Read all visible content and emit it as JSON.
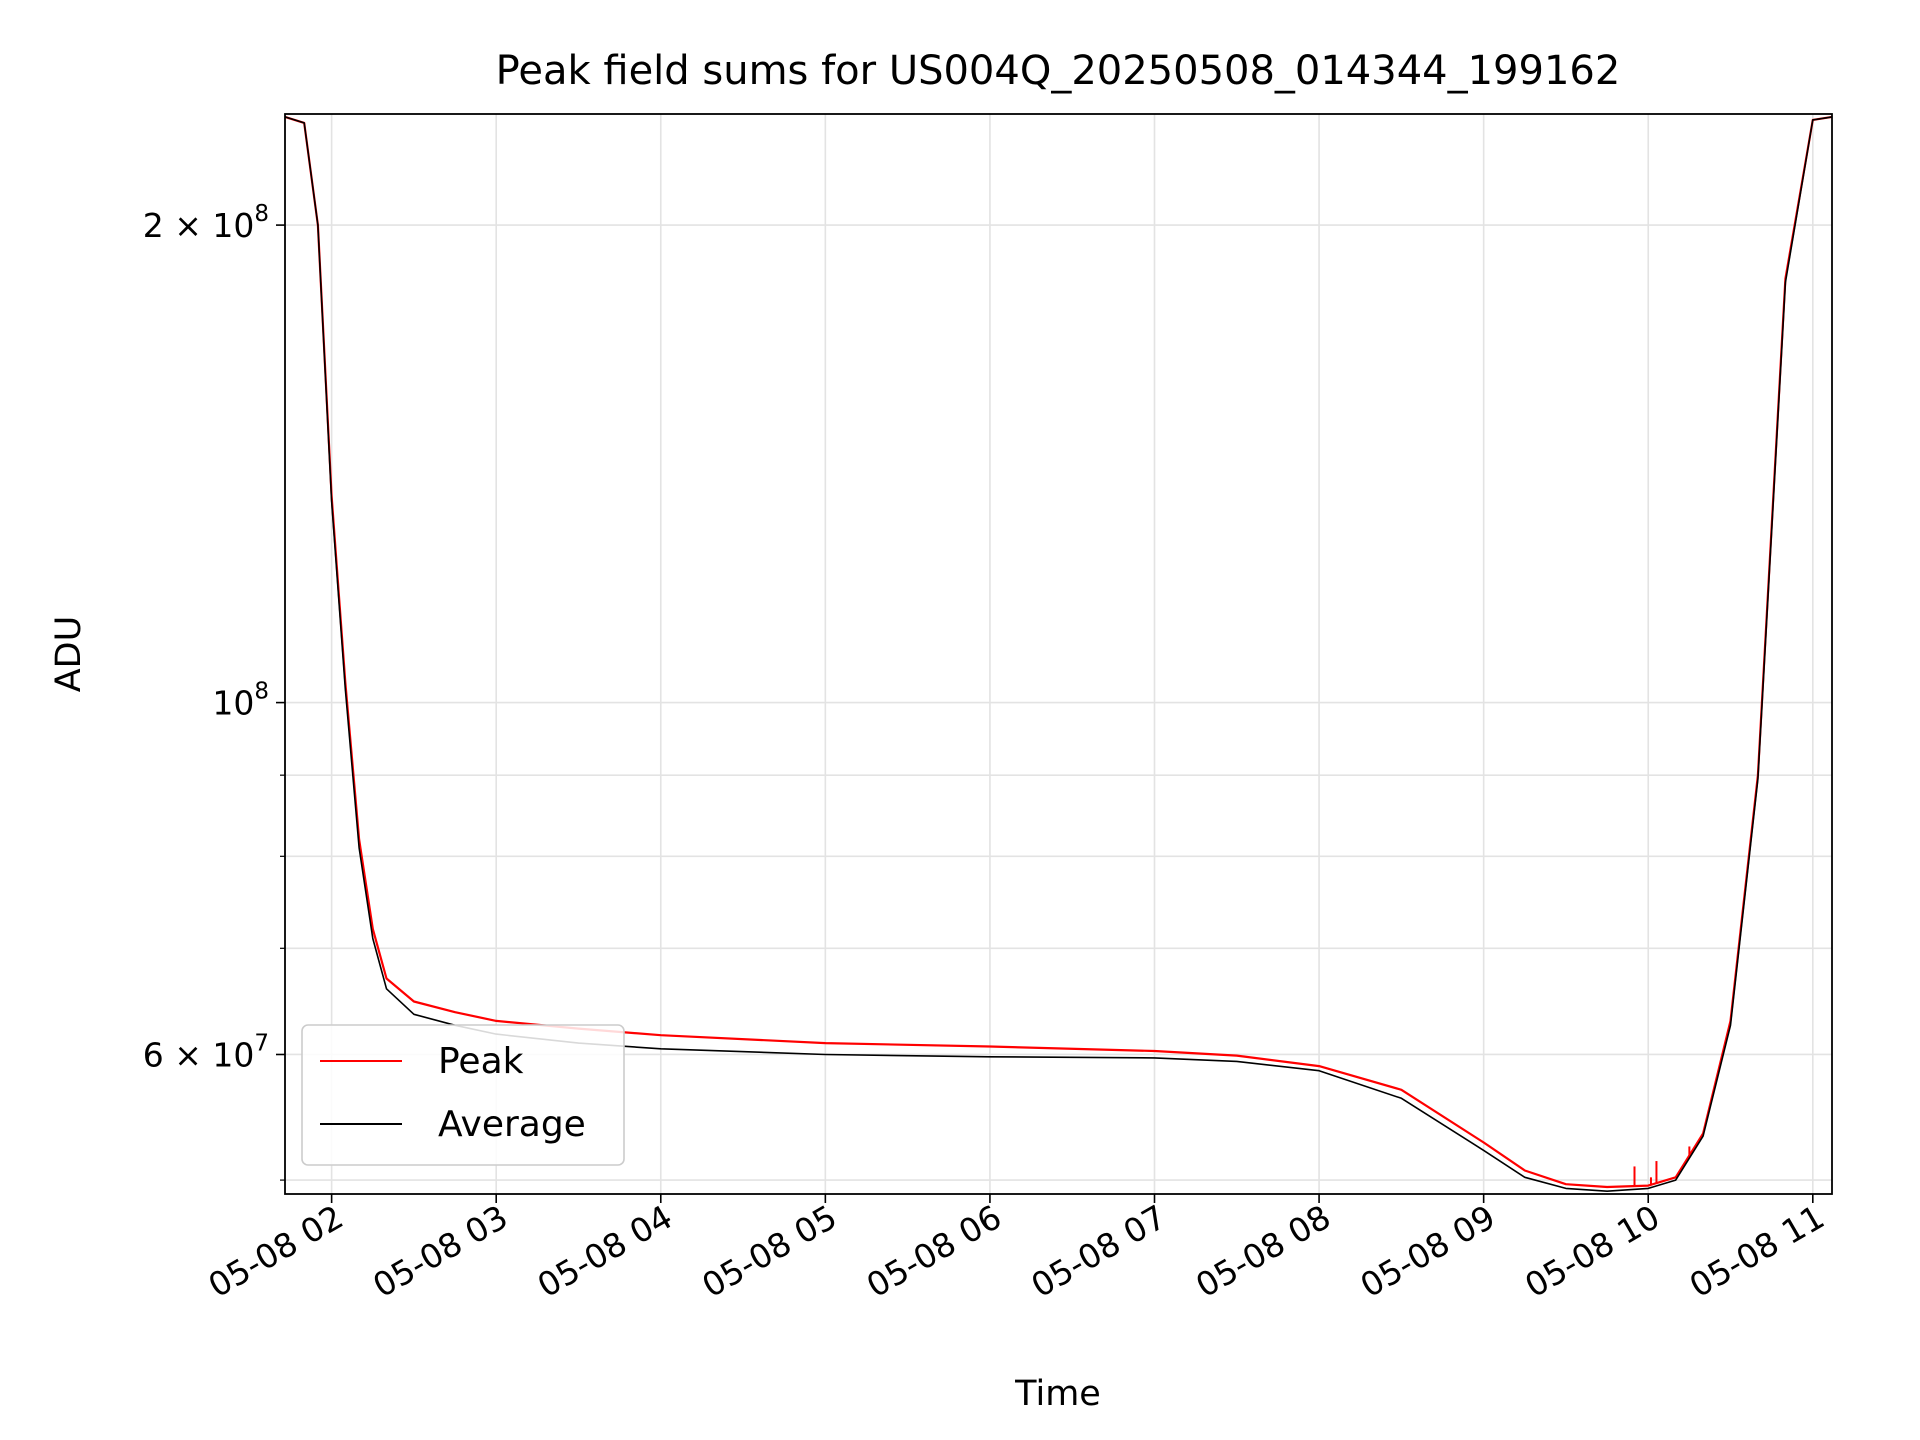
{
  "chart_data": {
    "type": "line",
    "title": "Peak field sums for US004Q_20250508_014344_199162",
    "xlabel": "Time",
    "ylabel": "ADU",
    "yscale": "log",
    "ylim": [
      49000000,
      235000000
    ],
    "xlim": [
      "2025-05-08 01:43",
      "2025-05-08 11:07"
    ],
    "grid": true,
    "legend_position": "lower-left",
    "x_ticks": [
      {
        "x": "2025-05-08 02:00",
        "label": "05-08 02"
      },
      {
        "x": "2025-05-08 03:00",
        "label": "05-08 03"
      },
      {
        "x": "2025-05-08 04:00",
        "label": "05-08 04"
      },
      {
        "x": "2025-05-08 05:00",
        "label": "05-08 05"
      },
      {
        "x": "2025-05-08 06:00",
        "label": "05-08 06"
      },
      {
        "x": "2025-05-08 07:00",
        "label": "05-08 07"
      },
      {
        "x": "2025-05-08 08:00",
        "label": "05-08 08"
      },
      {
        "x": "2025-05-08 09:00",
        "label": "05-08 09"
      },
      {
        "x": "2025-05-08 10:00",
        "label": "05-08 10"
      },
      {
        "x": "2025-05-08 11:00",
        "label": "05-08 11"
      }
    ],
    "y_major_ticks": [
      {
        "value": 100000000,
        "base": "10",
        "exp": "8"
      },
      {
        "value": 200000000,
        "base": "2 × 10",
        "exp": "8"
      },
      {
        "value": 60000000,
        "base": "6 × 10",
        "exp": "7"
      }
    ],
    "y_minor_ticks": [
      50000000,
      70000000,
      80000000,
      90000000
    ],
    "series": [
      {
        "name": "Peak",
        "color": "#ff0000",
        "x": [
          "2025-05-08 01:43",
          "2025-05-08 01:50",
          "2025-05-08 01:55",
          "2025-05-08 02:00",
          "2025-05-08 02:05",
          "2025-05-08 02:10",
          "2025-05-08 02:15",
          "2025-05-08 02:20",
          "2025-05-08 02:30",
          "2025-05-08 02:45",
          "2025-05-08 03:00",
          "2025-05-08 03:30",
          "2025-05-08 04:00",
          "2025-05-08 05:00",
          "2025-05-08 06:00",
          "2025-05-08 07:00",
          "2025-05-08 07:30",
          "2025-05-08 08:00",
          "2025-05-08 08:30",
          "2025-05-08 09:00",
          "2025-05-08 09:15",
          "2025-05-08 09:30",
          "2025-05-08 09:45",
          "2025-05-08 10:00",
          "2025-05-08 10:10",
          "2025-05-08 10:20",
          "2025-05-08 10:30",
          "2025-05-08 10:40",
          "2025-05-08 10:50",
          "2025-05-08 11:00",
          "2025-05-08 11:07"
        ],
        "y": [
          234000000,
          232000000,
          200000000,
          135000000,
          103000000,
          82000000,
          72000000,
          67000000,
          64800000,
          63800000,
          63000000,
          62300000,
          61700000,
          61000000,
          60700000,
          60300000,
          59900000,
          59000000,
          57000000,
          52800000,
          50700000,
          49700000,
          49500000,
          49600000,
          50200000,
          53500000,
          63000000,
          90000000,
          185000000,
          233000000,
          234000000
        ],
        "spikes": [
          {
            "x": "2025-05-08 09:55",
            "y": 51000000
          },
          {
            "x": "2025-05-08 10:01",
            "y": 50200000
          },
          {
            "x": "2025-05-08 10:03",
            "y": 51400000
          },
          {
            "x": "2025-05-08 10:15",
            "y": 52500000
          },
          {
            "x": "2025-05-08 10:26",
            "y": 59000000
          }
        ]
      },
      {
        "name": "Average",
        "color": "#000000",
        "x": [
          "2025-05-08 01:43",
          "2025-05-08 01:50",
          "2025-05-08 01:55",
          "2025-05-08 02:00",
          "2025-05-08 02:05",
          "2025-05-08 02:10",
          "2025-05-08 02:15",
          "2025-05-08 02:20",
          "2025-05-08 02:30",
          "2025-05-08 02:45",
          "2025-05-08 03:00",
          "2025-05-08 03:30",
          "2025-05-08 04:00",
          "2025-05-08 05:00",
          "2025-05-08 06:00",
          "2025-05-08 07:00",
          "2025-05-08 07:30",
          "2025-05-08 08:00",
          "2025-05-08 08:30",
          "2025-05-08 09:00",
          "2025-05-08 09:15",
          "2025-05-08 09:30",
          "2025-05-08 09:45",
          "2025-05-08 10:00",
          "2025-05-08 10:10",
          "2025-05-08 10:20",
          "2025-05-08 10:30",
          "2025-05-08 10:40",
          "2025-05-08 10:50",
          "2025-05-08 11:00",
          "2025-05-08 11:07"
        ],
        "y": [
          234000000,
          232000000,
          200000000,
          134000000,
          102000000,
          81000000,
          71000000,
          66000000,
          63600000,
          62600000,
          61800000,
          61000000,
          60500000,
          60000000,
          59800000,
          59700000,
          59400000,
          58600000,
          56300000,
          52200000,
          50200000,
          49400000,
          49200000,
          49400000,
          50000000,
          53300000,
          62600000,
          89500000,
          184000000,
          233000000,
          234000000
        ]
      }
    ]
  }
}
